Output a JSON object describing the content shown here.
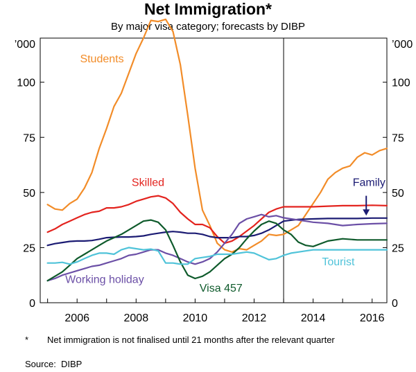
{
  "title": "Net Immigration*",
  "subtitle": "By major visa category; forecasts by DIBP",
  "footnote": {
    "marker": "*",
    "text": "Net immigration is not finalised until 21 months after the relevant quarter",
    "source_label": "Source:",
    "source_value": "DIBP"
  },
  "chart_data": {
    "type": "line",
    "y_unit_label": "’000",
    "ylim": [
      0,
      120
    ],
    "xlim": [
      2004.75,
      2016.5
    ],
    "y_ticks": [
      0,
      25,
      50,
      75,
      100
    ],
    "x_ticks": [
      2006,
      2008,
      2010,
      2012,
      2014,
      2016
    ],
    "forecast_start": 2013.0,
    "grid": false,
    "legend": "inline labels",
    "series": [
      {
        "name": "Students",
        "color": "#F28C28",
        "label_pos": [
          2006.1,
          109
        ],
        "x": [
          2005.0,
          2005.25,
          2005.5,
          2005.75,
          2006.0,
          2006.25,
          2006.5,
          2006.75,
          2007.0,
          2007.25,
          2007.5,
          2007.75,
          2008.0,
          2008.25,
          2008.5,
          2008.75,
          2009.0,
          2009.25,
          2009.5,
          2009.75,
          2010.0,
          2010.25,
          2010.5,
          2010.75,
          2011.0,
          2011.25,
          2011.5,
          2011.75,
          2012.0,
          2012.25,
          2012.5,
          2012.75,
          2013.0,
          2013.25,
          2013.5,
          2013.75,
          2014.0,
          2014.25,
          2014.5,
          2014.75,
          2015.0,
          2015.25,
          2015.5,
          2015.75,
          2016.0,
          2016.25,
          2016.5
        ],
        "values": [
          44.5,
          42.5,
          42,
          45,
          47,
          52,
          59,
          70,
          79,
          89,
          95,
          104,
          113,
          120,
          128,
          127.5,
          128.5,
          123,
          108,
          85,
          61,
          42,
          35,
          27,
          24,
          23,
          24.5,
          24,
          26,
          28,
          31,
          30.5,
          31,
          33,
          35,
          40,
          45,
          50,
          56,
          59,
          61,
          62,
          66,
          68,
          67,
          69,
          70
        ]
      },
      {
        "name": "Skilled",
        "color": "#E3231E",
        "label_pos": [
          2007.85,
          53
        ],
        "x": [
          2005.0,
          2005.25,
          2005.5,
          2005.75,
          2006.0,
          2006.25,
          2006.5,
          2006.75,
          2007.0,
          2007.25,
          2007.5,
          2007.75,
          2008.0,
          2008.25,
          2008.5,
          2008.75,
          2009.0,
          2009.25,
          2009.5,
          2009.75,
          2010.0,
          2010.25,
          2010.5,
          2010.75,
          2011.0,
          2011.25,
          2011.5,
          2011.75,
          2012.0,
          2012.25,
          2012.5,
          2012.75,
          2013.0,
          2013.5,
          2014.0,
          2014.5,
          2015.0,
          2015.5,
          2016.0,
          2016.5
        ],
        "values": [
          32,
          33.5,
          35.5,
          37,
          38.5,
          40,
          41,
          41.5,
          43,
          43,
          43.5,
          44.5,
          46,
          47,
          48,
          48.5,
          47.5,
          45,
          41,
          38,
          35.5,
          35.5,
          34,
          30,
          27,
          28,
          30,
          32.5,
          35,
          38,
          41,
          42.5,
          43.5,
          43.5,
          43.5,
          43.8,
          44,
          44,
          44.2,
          44
        ]
      },
      {
        "name": "Family",
        "color": "#1B1B73",
        "label_pos": [
          2016.45,
          53
        ],
        "x": [
          2005.0,
          2005.25,
          2005.5,
          2005.75,
          2006.0,
          2006.25,
          2006.5,
          2006.75,
          2007.0,
          2007.25,
          2007.5,
          2007.75,
          2008.0,
          2008.25,
          2008.5,
          2008.75,
          2009.0,
          2009.25,
          2009.5,
          2009.75,
          2010.0,
          2010.25,
          2010.5,
          2010.75,
          2011.0,
          2011.25,
          2011.5,
          2011.75,
          2012.0,
          2012.25,
          2012.5,
          2012.75,
          2013.0,
          2013.5,
          2014.0,
          2014.5,
          2015.0,
          2015.5,
          2016.0,
          2016.5
        ],
        "values": [
          26,
          26.8,
          27.3,
          27.8,
          28,
          28,
          28.2,
          28.8,
          29.5,
          29.7,
          29.8,
          29.8,
          30,
          30.3,
          31,
          31.5,
          32,
          32.3,
          32,
          31.5,
          31.5,
          31,
          30,
          29.5,
          29.5,
          29.5,
          30,
          30,
          30.5,
          31.5,
          33,
          35,
          37,
          37.8,
          38,
          38.2,
          38.2,
          38.2,
          38.4,
          38.4
        ]
      },
      {
        "name": "Working holiday",
        "color": "#6B4FA6",
        "label_pos": [
          2005.6,
          9
        ],
        "x": [
          2005.0,
          2005.25,
          2005.5,
          2005.75,
          2006.0,
          2006.25,
          2006.5,
          2006.75,
          2007.0,
          2007.25,
          2007.5,
          2007.75,
          2008.0,
          2008.25,
          2008.5,
          2008.75,
          2009.0,
          2009.25,
          2009.5,
          2009.75,
          2010.0,
          2010.25,
          2010.5,
          2010.75,
          2011.0,
          2011.25,
          2011.5,
          2011.75,
          2012.0,
          2012.25,
          2012.5,
          2012.75,
          2013.0,
          2013.25,
          2013.5,
          2013.75,
          2014.0,
          2014.5,
          2015.0,
          2015.5,
          2016.0,
          2016.5
        ],
        "values": [
          10,
          11,
          12.5,
          13.5,
          14.5,
          15.5,
          16.5,
          17,
          18,
          19,
          20,
          21.5,
          22,
          23,
          24,
          24,
          22.5,
          21.5,
          20,
          18.5,
          17.5,
          18.5,
          20,
          23,
          27,
          31,
          36,
          38,
          39,
          40,
          39,
          39.5,
          38.5,
          38,
          37.5,
          37,
          36.5,
          36,
          35,
          35.5,
          35.8,
          36
        ]
      },
      {
        "name": "Visa 457",
        "color": "#0E5A2B",
        "label_pos": [
          2010.15,
          5
        ],
        "x": [
          2005.0,
          2005.25,
          2005.5,
          2005.75,
          2006.0,
          2006.25,
          2006.5,
          2006.75,
          2007.0,
          2007.25,
          2007.5,
          2007.75,
          2008.0,
          2008.25,
          2008.5,
          2008.75,
          2009.0,
          2009.25,
          2009.5,
          2009.75,
          2010.0,
          2010.25,
          2010.5,
          2010.75,
          2011.0,
          2011.25,
          2011.5,
          2011.75,
          2012.0,
          2012.25,
          2012.5,
          2012.75,
          2013.0,
          2013.25,
          2013.5,
          2013.75,
          2014.0,
          2014.5,
          2015.0,
          2015.5,
          2016.0,
          2016.5
        ],
        "values": [
          10,
          12,
          14,
          17,
          20,
          22,
          24,
          26,
          28,
          29.5,
          31,
          33,
          35,
          37,
          37.5,
          36.5,
          33,
          26,
          18.5,
          12.5,
          11,
          12,
          14,
          17,
          20,
          22,
          25,
          29,
          32.5,
          35.5,
          37,
          36,
          33,
          31,
          27.5,
          26,
          25.5,
          28,
          29,
          28.5,
          28.5,
          28.5
        ]
      },
      {
        "name": "Tourist",
        "color": "#4FC3D9",
        "label_pos": [
          2014.3,
          17
        ],
        "x": [
          2005.0,
          2005.25,
          2005.5,
          2005.75,
          2006.0,
          2006.25,
          2006.5,
          2006.75,
          2007.0,
          2007.25,
          2007.5,
          2007.75,
          2008.0,
          2008.25,
          2008.5,
          2008.75,
          2009.0,
          2009.25,
          2009.5,
          2009.75,
          2010.0,
          2010.25,
          2010.5,
          2010.75,
          2011.0,
          2011.25,
          2011.5,
          2011.75,
          2012.0,
          2012.25,
          2012.5,
          2012.75,
          2013.0,
          2013.25,
          2013.5,
          2013.75,
          2014.0,
          2014.5,
          2015.0,
          2015.5,
          2016.0,
          2016.5
        ],
        "values": [
          18,
          18,
          18.3,
          17.5,
          18.5,
          20,
          21.5,
          22.5,
          22.5,
          22,
          24,
          25,
          24.5,
          24,
          24.3,
          23.5,
          18,
          18,
          17.5,
          17.5,
          20,
          20.5,
          21,
          22,
          22,
          22,
          22.5,
          23,
          22.5,
          21,
          19.5,
          20,
          21.5,
          22.5,
          23,
          23.5,
          24,
          24,
          24,
          24,
          24,
          24
        ]
      }
    ]
  }
}
